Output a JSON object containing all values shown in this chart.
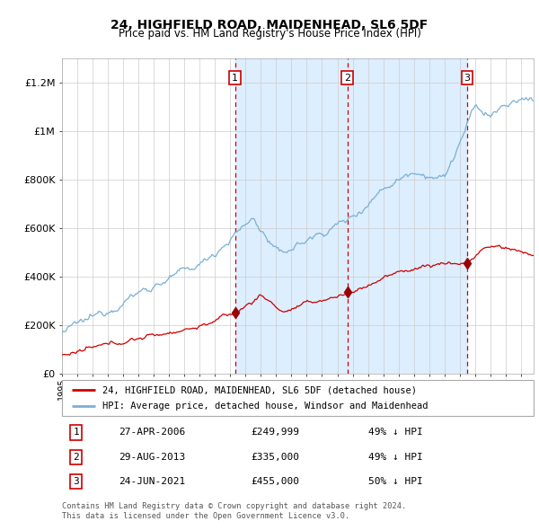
{
  "title": "24, HIGHFIELD ROAD, MAIDENHEAD, SL6 5DF",
  "subtitle": "Price paid vs. HM Land Registry's House Price Index (HPI)",
  "legend_red": "24, HIGHFIELD ROAD, MAIDENHEAD, SL6 5DF (detached house)",
  "legend_blue": "HPI: Average price, detached house, Windsor and Maidenhead",
  "footer1": "Contains HM Land Registry data © Crown copyright and database right 2024.",
  "footer2": "This data is licensed under the Open Government Licence v3.0.",
  "transactions": [
    {
      "num": 1,
      "date": "27-APR-2006",
      "price": 249999,
      "year": 2006.32,
      "pct": "49% ↓ HPI"
    },
    {
      "num": 2,
      "date": "29-AUG-2013",
      "price": 335000,
      "year": 2013.66,
      "pct": "49% ↓ HPI"
    },
    {
      "num": 3,
      "date": "24-JUN-2021",
      "price": 455000,
      "year": 2021.48,
      "pct": "50% ↓ HPI"
    }
  ],
  "background_color": "#ffffff",
  "plot_bg": "#ffffff",
  "shade_color": "#ddeeff",
  "grid_color": "#cccccc",
  "red_line_color": "#cc0000",
  "blue_line_color": "#7aafd4",
  "dot_color": "#990000",
  "dashed_color": "#cc0000",
  "ylim": [
    0,
    1300000
  ],
  "xlim_start": 1995.0,
  "xlim_end": 2025.83
}
